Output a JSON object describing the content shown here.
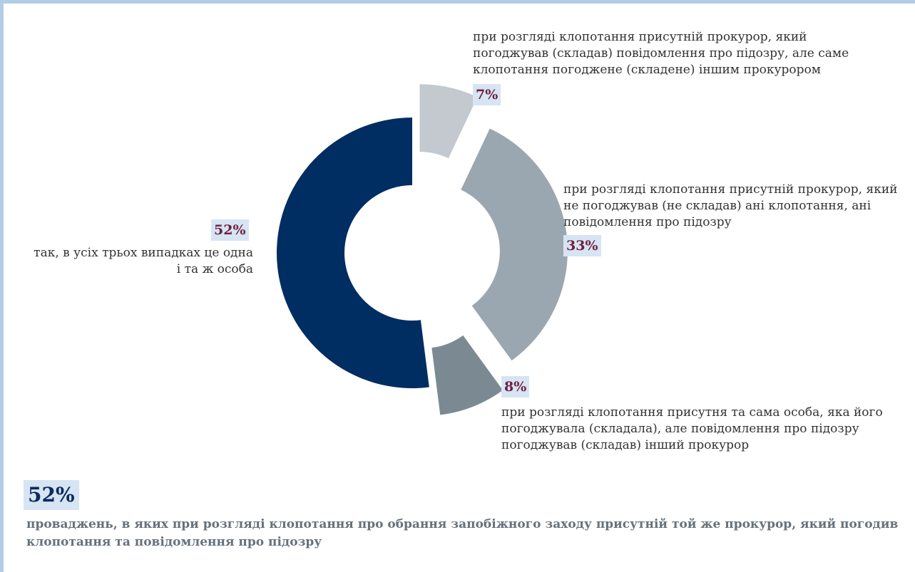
{
  "chart_data": {
    "type": "pie",
    "style": "donut, exploded slices",
    "slices": [
      {
        "value": 7,
        "label": "7%",
        "text": "при розгляді клопотання присутній прокурор, який погоджував (складав) повідомлення про підозру, але саме клопотання погоджене (складене) іншим прокурором",
        "color": "#c3c9cf"
      },
      {
        "value": 33,
        "label": "33%",
        "text": "при розгляді клопотання присутній прокурор, який не погоджував (не складав) ані клопотання, ані повідомлення про підозру",
        "color": "#9ba7b0"
      },
      {
        "value": 8,
        "label": "8%",
        "text": "при розгляді клопотання присутня та сама особа, яка його погоджувала (складала), але повідомлення про підозру погоджував (складав) інший прокурор",
        "color": "#7b8a92"
      },
      {
        "value": 52,
        "label": "52%",
        "text": "так, в усіх трьох випадках це одна і та ж особа",
        "color": "#002d62"
      }
    ]
  },
  "summary": {
    "value": "52%",
    "text": "проваджень, в яких при розгляді клопотання про обрання запобіжного заходу присутній той же прокурор, який погодив клопотання та повідомлення про підозру"
  },
  "colors": {
    "frame": "#b3cde6",
    "pct_highlight": "#d6e4f3",
    "pct_text": "#6e1f3d",
    "summary_pct_text": "#0d2a5e",
    "summary_text": "#66717c"
  }
}
